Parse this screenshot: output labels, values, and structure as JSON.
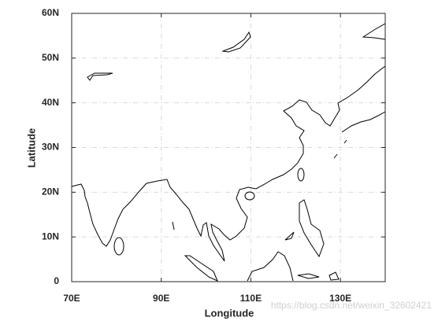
{
  "chart_data": {
    "type": "map",
    "xlabel": "Longitude",
    "ylabel": "Latitude",
    "xlim": [
      70,
      140
    ],
    "ylim": [
      0,
      60
    ],
    "xticks": [
      {
        "value": 70,
        "label": "70E"
      },
      {
        "value": 90,
        "label": "90E"
      },
      {
        "value": 110,
        "label": "110E"
      },
      {
        "value": 130,
        "label": "130E"
      }
    ],
    "yticks": [
      0,
      {
        "value": 10,
        "label": "10N"
      },
      {
        "value": 20,
        "label": "20N"
      },
      {
        "value": 30,
        "label": "30N"
      },
      {
        "value": 40,
        "label": "40N"
      },
      {
        "value": 50,
        "label": "50N"
      },
      {
        "value": 60,
        "label": "60N"
      }
    ],
    "grid": true
  },
  "watermark": "https://blog.csdn.net/weixin_32602421"
}
